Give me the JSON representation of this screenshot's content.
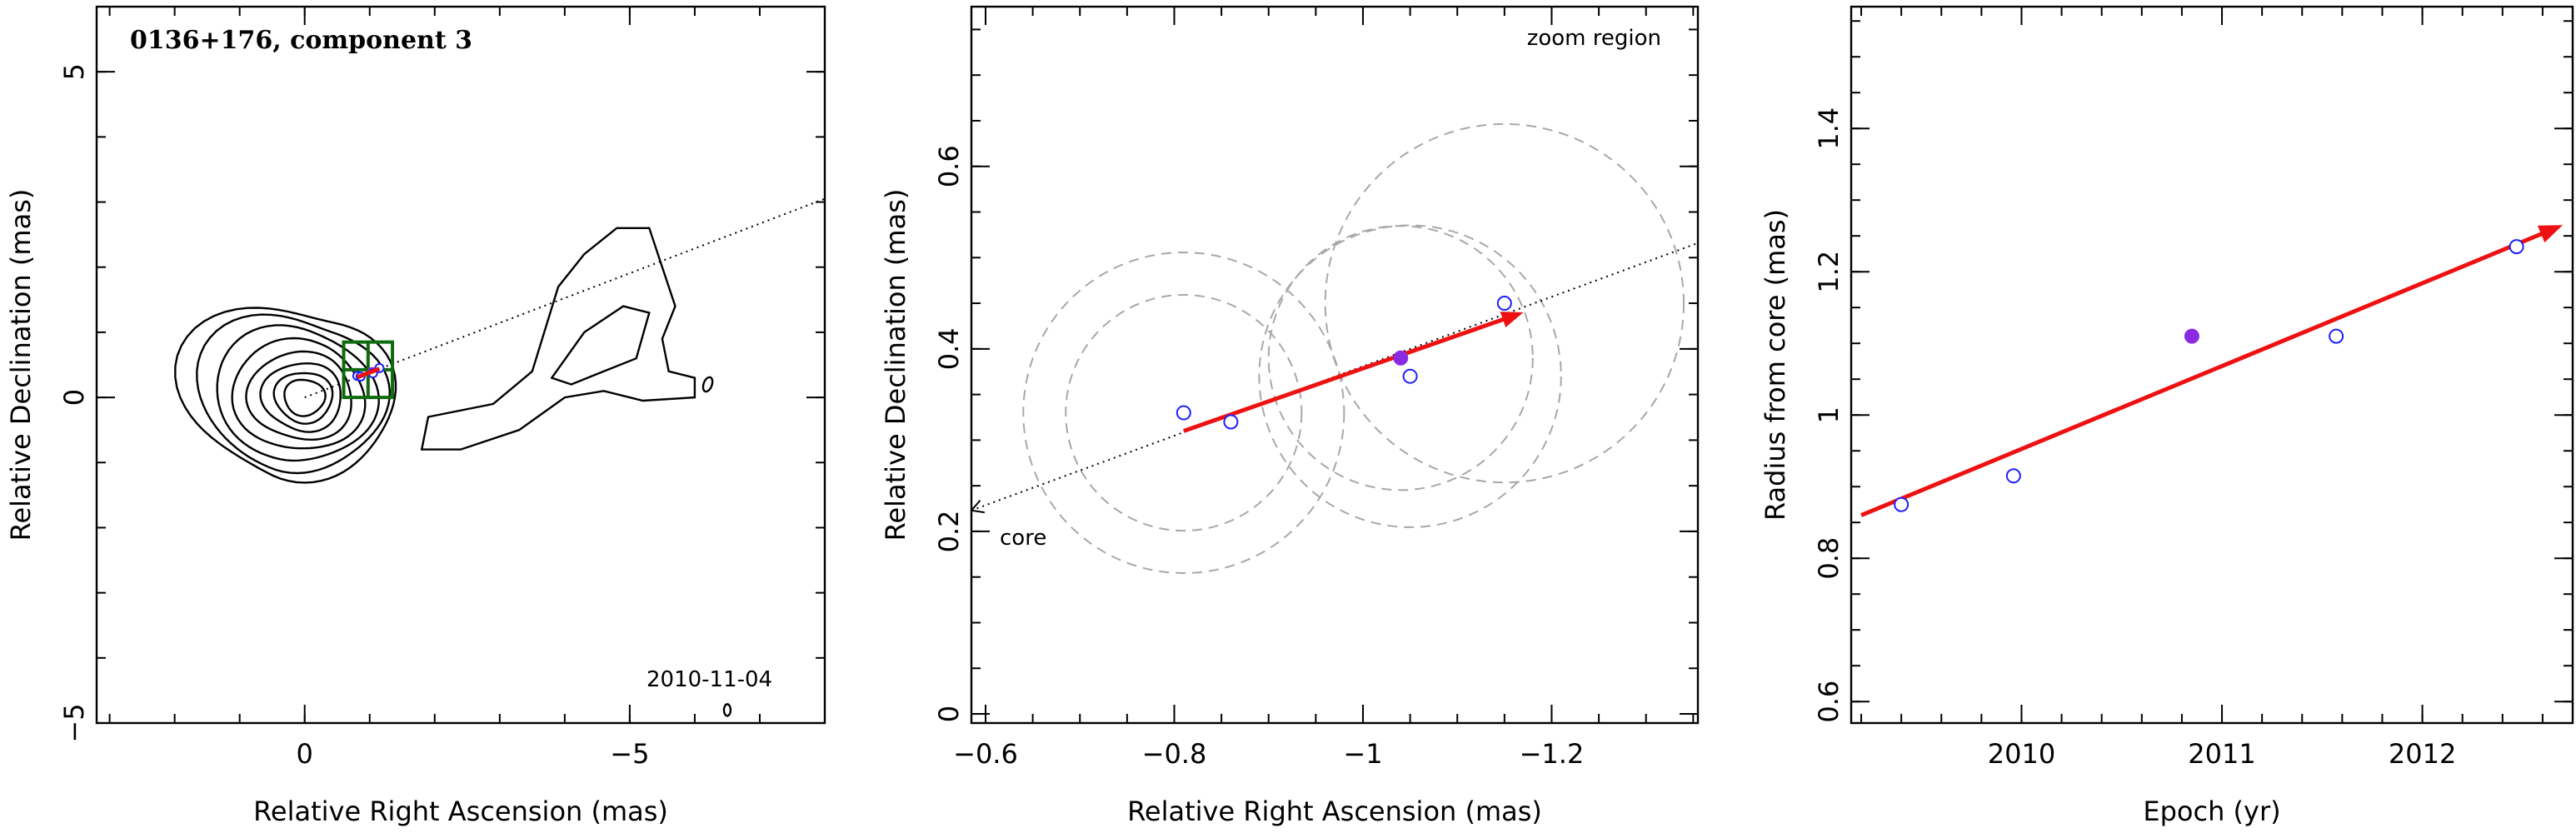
{
  "chart_data": [
    {
      "type": "contour",
      "title": "0136+176, component 3",
      "epoch_label": "2010-11-04",
      "xlabel": "Relative Right Ascension (mas)",
      "ylabel": "Relative Declination (mas)",
      "xlim": [
        3.2,
        -8.0
      ],
      "ylim": [
        -5.0,
        6.0
      ],
      "xticks": [
        0,
        -5
      ],
      "xtick_labels": [
        "0",
        "−5"
      ],
      "yticks": [
        -5,
        0,
        5
      ],
      "ytick_labels": [
        "−5",
        "0",
        "5"
      ],
      "jet_direction_line": [
        [
          0.0,
          0.0
        ],
        [
          -8.0,
          3.05
        ]
      ],
      "zoom_box": {
        "x": [
          -0.6,
          -1.35
        ],
        "y": [
          0.0,
          0.85
        ]
      },
      "component_positions": [
        {
          "x": -0.81,
          "y": 0.33,
          "filled": false
        },
        {
          "x": -0.86,
          "y": 0.32,
          "filled": false
        },
        {
          "x": -1.04,
          "y": 0.39,
          "filled": true
        },
        {
          "x": -1.05,
          "y": 0.37,
          "filled": false
        },
        {
          "x": -1.15,
          "y": 0.45,
          "filled": false
        }
      ]
    },
    {
      "type": "scatter",
      "corner_label": "zoom region",
      "core_label": "core",
      "xlabel": "Relative Right Ascension (mas)",
      "ylabel": "Relative Declination (mas)",
      "xlim": [
        -0.585,
        -1.355
      ],
      "ylim": [
        -0.01,
        0.775
      ],
      "xticks": [
        -0.6,
        -0.8,
        -1.0,
        -1.2
      ],
      "xtick_labels": [
        "−0.6",
        "−0.8",
        "−1",
        "−1.2"
      ],
      "yticks": [
        0,
        0.2,
        0.4,
        0.6
      ],
      "ytick_labels": [
        "0",
        "0.2",
        "0.4",
        "0.6"
      ],
      "points": [
        {
          "x": -0.81,
          "y": 0.33,
          "filled": false
        },
        {
          "x": -0.86,
          "y": 0.32,
          "filled": false
        },
        {
          "x": -1.04,
          "y": 0.39,
          "filled": true
        },
        {
          "x": -1.05,
          "y": 0.37,
          "filled": false
        },
        {
          "x": -1.15,
          "y": 0.45,
          "filled": false
        }
      ],
      "component_sizes": [
        {
          "x": -0.81,
          "y": 0.33,
          "r": 0.17
        },
        {
          "x": -0.81,
          "y": 0.33,
          "r": 0.125
        },
        {
          "x": -1.04,
          "y": 0.39,
          "r": 0.14
        },
        {
          "x": -1.05,
          "y": 0.37,
          "r": 0.16
        },
        {
          "x": -1.15,
          "y": 0.45,
          "r": 0.19
        }
      ],
      "motion_vector": {
        "from": [
          -0.81,
          0.31
        ],
        "to": [
          -1.17,
          0.44
        ]
      },
      "direction_line": {
        "from": [
          -0.585,
          0.223
        ],
        "to": [
          -1.355,
          0.516
        ]
      }
    },
    {
      "type": "scatter",
      "xlabel": "Epoch (yr)",
      "ylabel": "Radius from core (mas)",
      "xlim": [
        2009.15,
        2012.75
      ],
      "ylim": [
        0.57,
        1.57
      ],
      "xticks": [
        2010,
        2011,
        2012
      ],
      "xtick_labels": [
        "2010",
        "2011",
        "2012"
      ],
      "yticks": [
        0.6,
        0.8,
        1.0,
        1.2,
        1.4
      ],
      "ytick_labels": [
        "0.6",
        "0.8",
        "1",
        "1.2",
        "1.4"
      ],
      "points": [
        {
          "x": 2009.4,
          "y": 0.875,
          "filled": false
        },
        {
          "x": 2009.96,
          "y": 0.915,
          "filled": false
        },
        {
          "x": 2010.85,
          "y": 1.11,
          "filled": true
        },
        {
          "x": 2011.57,
          "y": 1.11,
          "filled": false
        },
        {
          "x": 2012.47,
          "y": 1.235,
          "filled": false
        }
      ],
      "fit_line": {
        "from": [
          2009.2,
          0.86
        ],
        "to": [
          2012.7,
          1.265
        ]
      }
    }
  ]
}
